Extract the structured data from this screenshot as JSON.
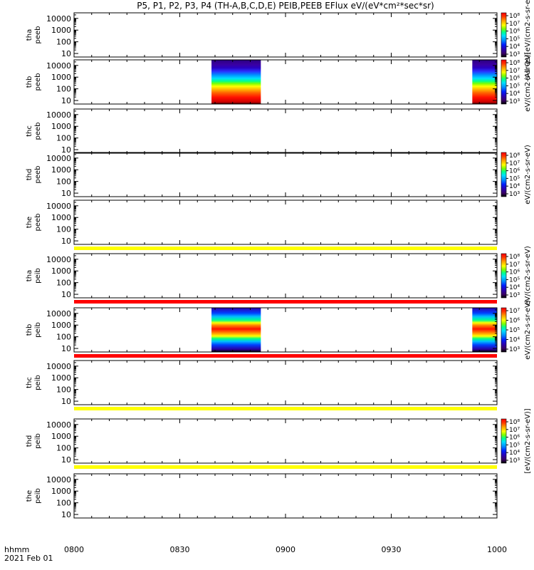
{
  "chart_data": {
    "type": "heatmap",
    "title": "P5, P1, P2, P3, P4 (TH-A,B,C,D,E) PEIB,PEEB EFlux eV/(eV*cm²*sec*sr)",
    "x_tick_labels": [
      "0800",
      "0830",
      "0900",
      "0930",
      "1000"
    ],
    "x_axis_label": "hhmm",
    "date_label": "2021 Feb 01",
    "xlim": [
      "08:00",
      "10:00"
    ],
    "y_scale": "log",
    "y_tick_labels": [
      "10",
      "100",
      "1000",
      "10000"
    ],
    "ylim": [
      5,
      30000
    ],
    "panels": [
      {
        "label": "tha\npeeb",
        "data_intervals": [],
        "colorbar": {
          "ticks": [
            "10³",
            "10⁴",
            "10⁵",
            "10⁶",
            "10⁷",
            "10⁸"
          ],
          "label": "(All Qs)[eV/(cm2-s-sr-eV)]"
        }
      },
      {
        "label": "thb\npeeb",
        "data_intervals": [
          [
            "08:39",
            "08:53"
          ],
          [
            "09:53",
            "10:00"
          ]
        ],
        "colorbar": {
          "ticks": [
            "10³",
            "10⁴",
            "10⁵",
            "10⁶",
            "10⁷",
            "10⁸"
          ],
          "label": "eV/(cm2-s-sr-eV)"
        }
      },
      {
        "label": "thc\npeeb",
        "data_intervals": [],
        "colorbar": null
      },
      {
        "label": "thd\npeeb",
        "data_intervals": [],
        "colorbar": {
          "ticks": [
            "10³",
            "10⁴",
            "10⁵",
            "10⁶",
            "10⁷",
            "10⁸"
          ],
          "label": "eV/(cm2-s-sr-eV)"
        }
      },
      {
        "label": "the\npeeb",
        "data_intervals": [],
        "colorbar": null,
        "below_bar": "#ffff00"
      },
      {
        "label": "tha\npeib",
        "data_intervals": [],
        "colorbar": {
          "ticks": [
            "10³",
            "10⁴",
            "10⁵",
            "10⁶",
            "10⁷",
            "10⁸"
          ],
          "label": "eV/(cm2-s-sr-eV)"
        },
        "below_bar": "#ff0000"
      },
      {
        "label": "thb\npeib",
        "data_intervals": [
          [
            "08:39",
            "08:53"
          ],
          [
            "09:53",
            "10:00"
          ]
        ],
        "colorbar": {
          "ticks": [
            "10³",
            "10⁴",
            "10⁵",
            "10⁶",
            "10⁷"
          ],
          "label": "eV/(cm2-s-sr-eV)"
        },
        "below_bar": "#ff0000"
      },
      {
        "label": "thc\npeib",
        "data_intervals": [],
        "colorbar": null,
        "below_bar": "#ffff00"
      },
      {
        "label": "thd\npeib",
        "data_intervals": [],
        "colorbar": {
          "ticks": [
            "10³",
            "10⁴",
            "10⁵",
            "10⁶",
            "10⁷",
            "10⁸"
          ],
          "label": "[eV/(cm2-s-sr-eV)]"
        },
        "below_bar": "#ffff00"
      },
      {
        "label": "the\npeib",
        "data_intervals": [],
        "colorbar": null
      }
    ],
    "colormap": [
      "#000000",
      "#3a0066",
      "#2a00b4",
      "#0020ff",
      "#0080ff",
      "#00d0ff",
      "#00ff90",
      "#80ff00",
      "#ffff00",
      "#ffa000",
      "#ff4000",
      "#ff0000"
    ]
  }
}
